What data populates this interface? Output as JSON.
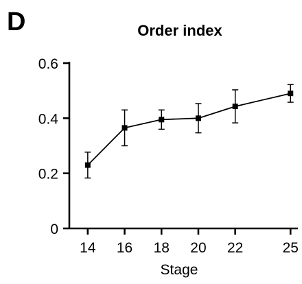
{
  "figure": {
    "panel_label": "D"
  },
  "chart_data": {
    "type": "line",
    "title": "Order index",
    "xlabel": "Stage",
    "ylabel": "",
    "xlim": [
      13,
      25.4
    ],
    "ylim": [
      0,
      0.6
    ],
    "x_ticks": [
      14,
      16,
      18,
      20,
      22,
      25
    ],
    "x_tick_labels": [
      "14",
      "16",
      "18",
      "20",
      "22",
      "25"
    ],
    "y_ticks": [
      0,
      0.2,
      0.4,
      0.6
    ],
    "y_tick_labels": [
      "0",
      "0.2",
      "0.4",
      "0.6"
    ],
    "grid": false,
    "series": [
      {
        "x": [
          14,
          16,
          18,
          20,
          22,
          25
        ],
        "y": [
          0.23,
          0.365,
          0.395,
          0.4,
          0.443,
          0.49
        ],
        "error": [
          0.047,
          0.065,
          0.035,
          0.053,
          0.06,
          0.032
        ]
      }
    ]
  }
}
